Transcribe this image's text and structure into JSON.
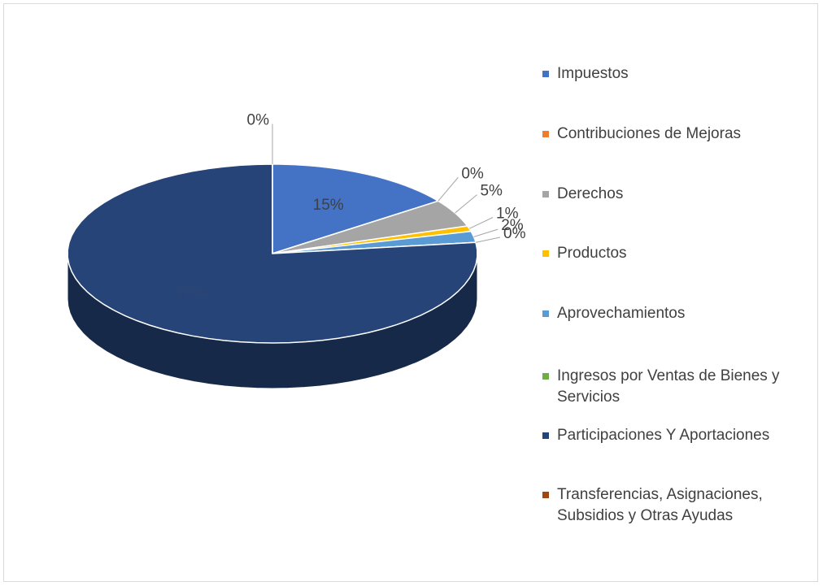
{
  "chart_data": {
    "type": "pie",
    "categories": [
      "Impuestos",
      "Contribuciones de Mejoras",
      "Derechos",
      "Productos",
      "Aprovechamientos",
      "Ingresos por Ventas de Bienes y Servicios",
      "Participaciones Y Aportaciones",
      "Transferencias, Asignaciones, Subsidios y Otras Ayudas"
    ],
    "values": [
      15,
      0,
      5,
      1,
      2,
      0,
      77,
      0
    ],
    "value_labels": [
      "15%",
      "0%",
      "5%",
      "1%",
      "2%",
      "0%",
      "77%",
      "0%"
    ],
    "colors": [
      "#4472c4",
      "#ed7d31",
      "#a5a5a5",
      "#ffc000",
      "#5b9bd5",
      "#70ad47",
      "#264478",
      "#9e480e"
    ],
    "legend": "right"
  }
}
